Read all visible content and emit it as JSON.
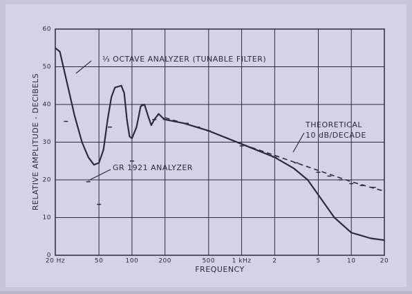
{
  "chart_data": {
    "type": "line",
    "xlabel": "FREQUENCY",
    "ylabel": "RELATIVE AMPLITUDE - DECIBELS",
    "xscale": "log",
    "xlim": [
      20,
      20000
    ],
    "ylim": [
      0,
      60
    ],
    "xticks": [
      {
        "value": 20,
        "label": "20 Hz"
      },
      50,
      100,
      200,
      500,
      {
        "value": 1000,
        "label": "1 kHz"
      },
      {
        "value": 2000,
        "label": "2"
      },
      {
        "value": 5000,
        "label": "5"
      },
      {
        "value": 10000,
        "label": "10"
      },
      {
        "value": 20000,
        "label": "20"
      }
    ],
    "yticks": [
      0,
      10,
      20,
      30,
      40,
      50,
      60
    ],
    "grid": true,
    "series": [
      {
        "name": "⅓ OCTAVE ANALYZER (TUNABLE FILTER)",
        "style": "solid",
        "color": "#2b2a3c",
        "x": [
          20,
          22,
          25,
          30,
          35,
          40,
          45,
          50,
          55,
          60,
          65,
          70,
          80,
          85,
          90,
          95,
          100,
          110,
          120,
          130,
          140,
          150,
          160,
          175,
          190,
          200,
          300,
          500,
          1000,
          2000,
          3000,
          4000,
          5000,
          7000,
          10000,
          15000,
          20000
        ],
        "values": [
          55,
          54,
          47,
          37,
          30,
          26,
          24,
          24.5,
          28,
          36,
          42,
          44.5,
          45,
          43,
          36,
          31.5,
          31,
          34,
          39.5,
          40,
          37,
          34.5,
          36,
          37.5,
          36.5,
          36,
          35,
          33,
          29.5,
          26,
          23,
          20,
          16,
          10,
          6,
          4.5,
          4
        ]
      },
      {
        "name": [
          "THEORETICAL",
          "10 dB/DECADE"
        ],
        "style": "dashed",
        "color": "#2b2a3c",
        "x": [
          200,
          500,
          1000,
          2000,
          5000,
          10000,
          20000
        ],
        "values": [
          36.5,
          33,
          29.5,
          26.5,
          22.5,
          19.5,
          17
        ]
      },
      {
        "name": "GR 1921 ANALYZER",
        "style": "marks",
        "color": "#2b2a3c",
        "x": [
          25,
          40,
          50,
          63,
          100,
          125,
          160,
          200,
          250,
          315,
          400,
          500,
          1000,
          2000,
          3150,
          5000,
          6300,
          8000,
          10000,
          12500,
          16000
        ],
        "values": [
          35.5,
          19.5,
          13.5,
          34,
          25,
          40,
          36,
          36,
          35.5,
          35,
          34,
          33,
          29,
          26,
          24.5,
          22,
          21,
          20,
          19,
          18.5,
          18
        ]
      }
    ]
  }
}
